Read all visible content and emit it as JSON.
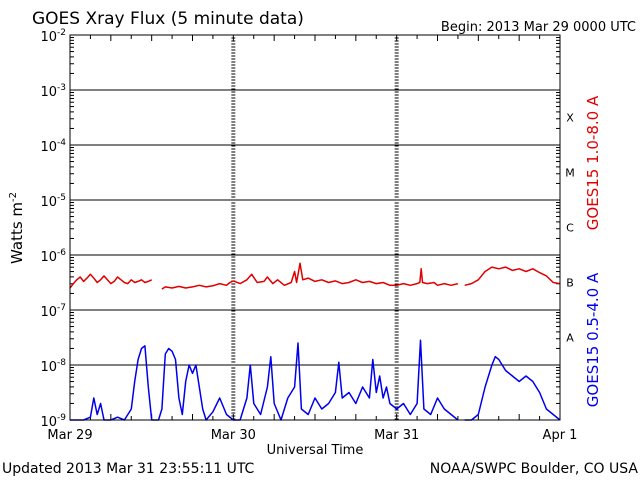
{
  "chart_data": {
    "type": "line",
    "title": "GOES Xray Flux (5 minute data)",
    "begin_label": "Begin:  2013 Mar 29 0000 UTC",
    "xlabel": "Universal Time",
    "ylabel": "Watts m",
    "ylabel_exponent": "-2",
    "y_scale": "log",
    "ylim": [
      1e-09,
      0.01
    ],
    "xlim": [
      0,
      72
    ],
    "x_tick_labels": [
      {
        "label": "Mar 29",
        "hours": 0
      },
      {
        "label": "Mar 30",
        "hours": 24
      },
      {
        "label": "Mar 31",
        "hours": 48
      },
      {
        "label": "Apr 1",
        "hours": 72
      }
    ],
    "y_ticks": [
      {
        "base": "10",
        "exp": "-2",
        "exponent": -2
      },
      {
        "base": "10",
        "exp": "-3",
        "exponent": -3
      },
      {
        "base": "10",
        "exp": "-4",
        "exponent": -4
      },
      {
        "base": "10",
        "exp": "-5",
        "exponent": -5
      },
      {
        "base": "10",
        "exp": "-6",
        "exponent": -6
      },
      {
        "base": "10",
        "exp": "-7",
        "exponent": -7
      },
      {
        "base": "10",
        "exp": "-8",
        "exponent": -8
      },
      {
        "base": "10",
        "exp": "-9",
        "exponent": -9
      }
    ],
    "flare_classes": [
      {
        "label": "X",
        "exponent": -3.5
      },
      {
        "label": "M",
        "exponent": -4.5
      },
      {
        "label": "C",
        "exponent": -5.5
      },
      {
        "label": "B",
        "exponent": -6.5
      },
      {
        "label": "A",
        "exponent": -7.5
      }
    ],
    "grid": true,
    "series": [
      {
        "name": "GOES15 1.0-8.0 A",
        "color": "#e00000",
        "segments": [
          [
            [
              0,
              -6.6
            ],
            [
              0.5,
              -6.52
            ],
            [
              1.0,
              -6.45
            ],
            [
              1.5,
              -6.4
            ],
            [
              2.0,
              -6.48
            ],
            [
              2.5,
              -6.42
            ],
            [
              3.0,
              -6.35
            ],
            [
              3.5,
              -6.42
            ],
            [
              4.0,
              -6.5
            ],
            [
              4.5,
              -6.45
            ],
            [
              5.0,
              -6.38
            ],
            [
              5.5,
              -6.45
            ],
            [
              6.0,
              -6.52
            ],
            [
              6.5,
              -6.48
            ],
            [
              7.0,
              -6.4
            ],
            [
              7.5,
              -6.45
            ],
            [
              8.0,
              -6.5
            ],
            [
              8.5,
              -6.52
            ],
            [
              9.0,
              -6.45
            ],
            [
              9.5,
              -6.5
            ],
            [
              10.0,
              -6.48
            ],
            [
              10.5,
              -6.45
            ],
            [
              11.0,
              -6.5
            ],
            [
              11.5,
              -6.48
            ],
            [
              12.0,
              -6.45
            ]
          ],
          [
            [
              13.5,
              -6.62
            ],
            [
              14.0,
              -6.58
            ],
            [
              15.0,
              -6.6
            ],
            [
              16.0,
              -6.57
            ],
            [
              17.0,
              -6.6
            ],
            [
              18.0,
              -6.58
            ],
            [
              19.0,
              -6.55
            ],
            [
              20.0,
              -6.58
            ],
            [
              21.0,
              -6.56
            ],
            [
              22.0,
              -6.52
            ],
            [
              23.0,
              -6.55
            ],
            [
              23.5,
              -6.5
            ],
            [
              24.0,
              -6.47
            ],
            [
              25.0,
              -6.52
            ],
            [
              26.0,
              -6.45
            ],
            [
              26.7,
              -6.35
            ],
            [
              27.5,
              -6.5
            ],
            [
              28.5,
              -6.48
            ],
            [
              29.0,
              -6.4
            ],
            [
              29.8,
              -6.52
            ],
            [
              30.5,
              -6.45
            ],
            [
              31.5,
              -6.55
            ],
            [
              32.5,
              -6.5
            ],
            [
              33.0,
              -6.3
            ],
            [
              33.3,
              -6.5
            ],
            [
              33.8,
              -6.15
            ],
            [
              34.2,
              -6.45
            ],
            [
              35.0,
              -6.42
            ],
            [
              36.0,
              -6.48
            ],
            [
              37.0,
              -6.45
            ],
            [
              38.0,
              -6.5
            ],
            [
              39.0,
              -6.47
            ],
            [
              40.0,
              -6.52
            ],
            [
              41.0,
              -6.5
            ],
            [
              42.0,
              -6.45
            ],
            [
              43.0,
              -6.5
            ],
            [
              44.0,
              -6.48
            ],
            [
              45.0,
              -6.52
            ],
            [
              46.0,
              -6.5
            ],
            [
              47.0,
              -6.55
            ],
            [
              48.0,
              -6.55
            ],
            [
              49.0,
              -6.52
            ],
            [
              50.0,
              -6.55
            ],
            [
              51.0,
              -6.52
            ],
            [
              51.4,
              -6.5
            ],
            [
              51.6,
              -6.25
            ],
            [
              51.8,
              -6.5
            ],
            [
              52.5,
              -6.52
            ],
            [
              53.5,
              -6.5
            ],
            [
              54.0,
              -6.55
            ],
            [
              55.0,
              -6.52
            ],
            [
              56.0,
              -6.55
            ],
            [
              57.0,
              -6.52
            ]
          ],
          [
            [
              58.0,
              -6.55
            ],
            [
              59.0,
              -6.52
            ],
            [
              60.0,
              -6.45
            ],
            [
              61.0,
              -6.3
            ],
            [
              62.0,
              -6.22
            ],
            [
              63.0,
              -6.25
            ],
            [
              64.0,
              -6.22
            ],
            [
              65.0,
              -6.28
            ],
            [
              66.0,
              -6.25
            ],
            [
              67.0,
              -6.3
            ],
            [
              68.0,
              -6.25
            ],
            [
              69.0,
              -6.32
            ],
            [
              70.0,
              -6.38
            ],
            [
              71.0,
              -6.5
            ],
            [
              72.0,
              -6.52
            ]
          ]
        ]
      },
      {
        "name": "GOES15 0.5-4.0 A",
        "color": "#0000ee",
        "segments": [
          [
            [
              0,
              -9.0
            ],
            [
              1,
              -9.0
            ],
            [
              2,
              -9.0
            ],
            [
              3,
              -8.95
            ],
            [
              3.5,
              -8.6
            ],
            [
              4.0,
              -8.9
            ],
            [
              4.5,
              -8.7
            ],
            [
              5.0,
              -9.0
            ],
            [
              6.0,
              -9.0
            ],
            [
              7.0,
              -8.95
            ],
            [
              8.0,
              -9.0
            ],
            [
              9.0,
              -8.8
            ],
            [
              9.5,
              -8.3
            ],
            [
              10.0,
              -7.9
            ],
            [
              10.5,
              -7.7
            ],
            [
              11.0,
              -7.65
            ],
            [
              11.5,
              -8.4
            ],
            [
              12.0,
              -9.0
            ],
            [
              13.0,
              -9.0
            ],
            [
              13.5,
              -8.8
            ],
            [
              14.0,
              -7.8
            ],
            [
              14.5,
              -7.7
            ],
            [
              15.0,
              -7.75
            ],
            [
              15.5,
              -7.9
            ],
            [
              16.0,
              -8.6
            ],
            [
              16.5,
              -8.9
            ],
            [
              17.0,
              -8.3
            ],
            [
              17.5,
              -8.0
            ],
            [
              18.0,
              -8.15
            ],
            [
              18.5,
              -8.0
            ],
            [
              19.0,
              -8.4
            ],
            [
              19.5,
              -8.8
            ],
            [
              20.0,
              -9.0
            ],
            [
              21.0,
              -8.85
            ],
            [
              22.0,
              -8.6
            ],
            [
              23.0,
              -8.9
            ],
            [
              24.0,
              -9.0
            ],
            [
              25.0,
              -9.0
            ],
            [
              26.0,
              -8.6
            ],
            [
              26.5,
              -8.0
            ],
            [
              27.0,
              -8.7
            ],
            [
              28.0,
              -8.9
            ],
            [
              29.0,
              -8.4
            ],
            [
              29.5,
              -7.85
            ],
            [
              30.0,
              -8.7
            ],
            [
              31.0,
              -9.0
            ],
            [
              32.0,
              -8.6
            ],
            [
              33.0,
              -8.4
            ],
            [
              33.5,
              -7.6
            ],
            [
              34.0,
              -8.8
            ],
            [
              35.0,
              -8.9
            ],
            [
              36.0,
              -8.6
            ],
            [
              37.0,
              -8.8
            ],
            [
              38.0,
              -8.7
            ],
            [
              39.0,
              -8.5
            ],
            [
              39.5,
              -7.95
            ],
            [
              40.0,
              -8.6
            ],
            [
              41.0,
              -8.5
            ],
            [
              42.0,
              -8.7
            ],
            [
              43.0,
              -8.4
            ],
            [
              44.0,
              -8.6
            ],
            [
              44.5,
              -7.9
            ],
            [
              45.0,
              -8.5
            ],
            [
              45.5,
              -8.2
            ],
            [
              46.0,
              -8.6
            ],
            [
              46.5,
              -8.4
            ],
            [
              47.0,
              -8.7
            ],
            [
              48.0,
              -8.8
            ],
            [
              49.0,
              -8.7
            ],
            [
              50.0,
              -8.9
            ],
            [
              51.0,
              -8.7
            ],
            [
              51.5,
              -7.55
            ],
            [
              52.0,
              -8.8
            ],
            [
              53.0,
              -8.9
            ],
            [
              54.0,
              -8.6
            ],
            [
              55.0,
              -8.8
            ],
            [
              56.0,
              -8.9
            ],
            [
              57.0,
              -9.0
            ]
          ],
          [
            [
              58.0,
              -9.0
            ],
            [
              59.0,
              -9.0
            ],
            [
              60.0,
              -8.9
            ],
            [
              61.0,
              -8.4
            ],
            [
              62.0,
              -8.0
            ],
            [
              62.5,
              -7.85
            ],
            [
              63.0,
              -7.9
            ],
            [
              64.0,
              -8.1
            ],
            [
              65.0,
              -8.2
            ],
            [
              66.0,
              -8.3
            ],
            [
              67.0,
              -8.2
            ],
            [
              68.0,
              -8.3
            ],
            [
              69.0,
              -8.5
            ],
            [
              70.0,
              -8.8
            ],
            [
              71.0,
              -8.9
            ],
            [
              72.0,
              -9.0
            ]
          ]
        ]
      }
    ],
    "legend_placement": "right (vertical text)"
  },
  "footer": {
    "updated": "Updated 2013 Mar 31 23:55:11 UTC",
    "credit": "NOAA/SWPC Boulder, CO USA"
  }
}
